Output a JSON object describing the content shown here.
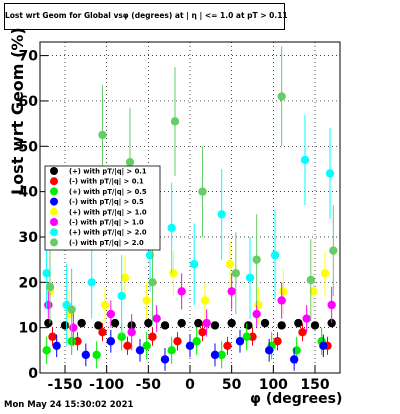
{
  "title": "Lost wrt Geom for Global vsφ (degrees) at | η | <= 1.0 at pT > 0.11",
  "footer": "Mon May 24 15:30:02 2021",
  "colors": {
    "black": "#000000",
    "red": "#ff0000",
    "green": "#00ee00",
    "blue": "#0000ff",
    "yellow": "#ffff00",
    "magenta": "#ff00ff",
    "cyan": "#00ffff",
    "lightgreen": "#66cc66"
  },
  "chart_data": {
    "type": "scatter",
    "title": "Lost wrt Geom for Global vsφ (degrees) at | η | <= 1.0 at pT > 0.11",
    "xlabel": "φ (degrees)",
    "ylabel": "Lost  wrt  Geom (%)",
    "xlim": [
      -180,
      180
    ],
    "ylim": [
      0,
      73
    ],
    "xticks": [
      -150,
      -100,
      -50,
      0,
      50,
      100,
      150
    ],
    "yticks": [
      0,
      10,
      20,
      30,
      40,
      50,
      60,
      70
    ],
    "xtick_labels": [
      "-150",
      "-100",
      "-50",
      "0",
      "50",
      "100",
      "150"
    ],
    "ytick_labels": [
      "0",
      "10",
      "20",
      "30",
      "40",
      "50",
      "60",
      "70"
    ],
    "grid": true,
    "legend_placement": "left-middle",
    "series": [
      {
        "name": "(+) with pT/|q| > 0.1",
        "color": "#000000",
        "x": [
          -170,
          -150,
          -130,
          -110,
          -90,
          -70,
          -50,
          -30,
          -10,
          10,
          30,
          50,
          70,
          90,
          110,
          130,
          150,
          170
        ],
        "y": [
          11,
          10.5,
          11,
          10.5,
          11,
          10.5,
          11,
          10.5,
          11,
          11,
          10.5,
          11,
          10.5,
          11,
          10.5,
          11,
          10.5,
          11
        ],
        "err": [
          0.8,
          0.8,
          0.8,
          0.8,
          0.8,
          0.8,
          0.8,
          0.8,
          0.8,
          0.8,
          0.8,
          0.8,
          0.8,
          0.8,
          0.8,
          0.8,
          0.8,
          0.8
        ]
      },
      {
        "name": "(-) with pT/|q| > 0.1",
        "color": "#ff0000",
        "x": [
          -165,
          -135,
          -105,
          -75,
          -45,
          -15,
          15,
          45,
          75,
          105,
          135,
          165
        ],
        "y": [
          8,
          7,
          9,
          6,
          8,
          7,
          9,
          6,
          8,
          7,
          9,
          6
        ],
        "err": [
          2,
          2,
          2,
          2,
          2,
          2,
          2,
          2,
          2,
          2,
          2,
          2
        ]
      },
      {
        "name": "(+) with pT/|q| > 0.5",
        "color": "#00ee00",
        "x": [
          -172,
          -142,
          -112,
          -82,
          -52,
          -22,
          8,
          38,
          68,
          98,
          128,
          158
        ],
        "y": [
          5,
          7,
          4,
          8,
          6,
          5,
          7,
          4,
          8,
          6,
          5,
          7
        ],
        "err": [
          3,
          3,
          3,
          3,
          3,
          3,
          3,
          3,
          3,
          3,
          3,
          3
        ]
      },
      {
        "name": "(-) with pT/|q| > 0.5",
        "color": "#0000ff",
        "x": [
          -160,
          -125,
          -95,
          -60,
          -30,
          0,
          30,
          60,
          95,
          125,
          160
        ],
        "y": [
          6,
          4,
          7,
          5,
          3,
          6,
          4,
          7,
          5,
          3,
          6
        ],
        "err": [
          2.5,
          2.5,
          2.5,
          2.5,
          2.5,
          2.5,
          2.5,
          2.5,
          2.5,
          2.5,
          2.5
        ]
      },
      {
        "name": "(+) with pT/|q| > 1.0",
        "color": "#ffff00",
        "x": [
          -168,
          -145,
          -102,
          -78,
          -52,
          -20,
          18,
          48,
          82,
          112,
          148,
          162
        ],
        "y": [
          18,
          13,
          15,
          21,
          16,
          22,
          16,
          24,
          15,
          18,
          18,
          22
        ],
        "err": [
          4,
          5,
          4,
          5,
          4,
          5,
          4,
          5,
          4,
          5,
          4,
          5
        ]
      },
      {
        "name": "(-) with pT/|q| > 1.0",
        "color": "#ff00ff",
        "x": [
          -170,
          -140,
          -95,
          -70,
          -40,
          -10,
          20,
          50,
          80,
          110,
          140,
          170
        ],
        "y": [
          15,
          10,
          13,
          9,
          12,
          18,
          11,
          18,
          13,
          16,
          12,
          15
        ],
        "err": [
          3,
          4,
          3,
          4,
          3,
          4,
          3,
          4,
          3,
          4,
          3,
          4
        ]
      },
      {
        "name": "(+) with pT/|q| > 2.0",
        "color": "#00ffff",
        "x": [
          -172,
          -148,
          -118,
          -82,
          -48,
          -22,
          5,
          38,
          72,
          102,
          138,
          168
        ],
        "y": [
          22,
          15,
          20,
          17,
          26,
          32,
          24,
          35,
          21,
          26,
          47,
          44
        ],
        "err": [
          8,
          9,
          8,
          9,
          8,
          10,
          9,
          10,
          9,
          10,
          10,
          10
        ]
      },
      {
        "name": "(-) with pT/|q| > 2.0",
        "color": "#66cc66",
        "x": [
          -168,
          -142,
          -105,
          -72,
          -45,
          -18,
          15,
          55,
          80,
          110,
          145,
          172
        ],
        "y": [
          19,
          14,
          52.5,
          46.5,
          20,
          55.5,
          40,
          22,
          25,
          61,
          20.5,
          27
        ],
        "err": [
          8,
          9,
          11,
          12,
          9,
          12,
          10,
          9,
          10,
          11,
          9,
          10
        ]
      }
    ]
  }
}
